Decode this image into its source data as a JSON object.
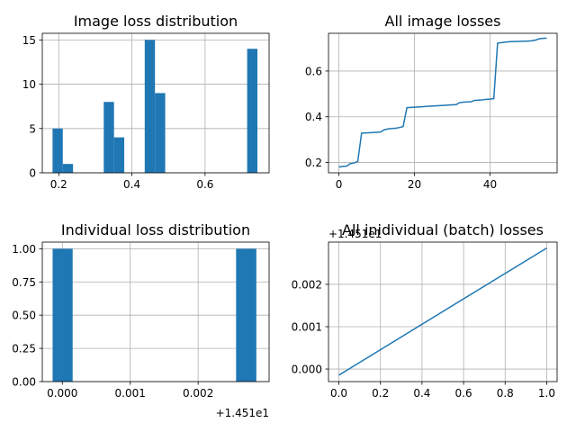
{
  "chart_data": [
    {
      "id": "hist_image",
      "type": "bar",
      "title": "Image loss distribution",
      "xlabel": "",
      "ylabel": "",
      "xlim": [
        0.155,
        0.775
      ],
      "ylim": [
        0,
        15.75
      ],
      "xticks": [
        0.2,
        0.4,
        0.6
      ],
      "xtick_labels": [
        "0.2",
        "0.4",
        "0.6"
      ],
      "yticks": [
        0,
        5,
        10,
        15
      ],
      "ytick_labels": [
        "0",
        "5",
        "10",
        "15"
      ],
      "grid": true,
      "bins": [
        {
          "x0": 0.183,
          "x1": 0.211,
          "value": 5
        },
        {
          "x0": 0.211,
          "x1": 0.239,
          "value": 1
        },
        {
          "x0": 0.323,
          "x1": 0.351,
          "value": 8
        },
        {
          "x0": 0.351,
          "x1": 0.379,
          "value": 4
        },
        {
          "x0": 0.435,
          "x1": 0.463,
          "value": 15
        },
        {
          "x0": 0.463,
          "x1": 0.491,
          "value": 9
        },
        {
          "x0": 0.715,
          "x1": 0.743,
          "value": 14
        }
      ],
      "color": "#1f77b4"
    },
    {
      "id": "line_image",
      "type": "line",
      "title": "All image losses",
      "xlabel": "",
      "ylabel": "",
      "xlim": [
        -2.75,
        57.75
      ],
      "ylim": [
        0.155,
        0.765
      ],
      "xticks": [
        0,
        20,
        40
      ],
      "xtick_labels": [
        "0",
        "20",
        "40"
      ],
      "yticks": [
        0.2,
        0.4,
        0.6
      ],
      "ytick_labels": [
        "0.2",
        "0.4",
        "0.6"
      ],
      "grid": true,
      "x": [
        0,
        1,
        2,
        3,
        4,
        5,
        6,
        7,
        8,
        9,
        10,
        11,
        12,
        13,
        14,
        15,
        16,
        17,
        18,
        19,
        20,
        21,
        22,
        23,
        24,
        25,
        26,
        27,
        28,
        29,
        30,
        31,
        32,
        33,
        34,
        35,
        36,
        37,
        38,
        39,
        40,
        41,
        42,
        43,
        44,
        45,
        46,
        47,
        48,
        49,
        50,
        51,
        52,
        53,
        54,
        55
      ],
      "y": [
        0.18,
        0.183,
        0.184,
        0.195,
        0.198,
        0.205,
        0.328,
        0.329,
        0.33,
        0.331,
        0.332,
        0.333,
        0.343,
        0.347,
        0.349,
        0.35,
        0.353,
        0.357,
        0.44,
        0.441,
        0.442,
        0.443,
        0.444,
        0.445,
        0.446,
        0.447,
        0.448,
        0.449,
        0.45,
        0.451,
        0.452,
        0.453,
        0.462,
        0.464,
        0.465,
        0.466,
        0.472,
        0.473,
        0.474,
        0.476,
        0.477,
        0.479,
        0.722,
        0.724,
        0.726,
        0.728,
        0.729,
        0.729,
        0.73,
        0.73,
        0.731,
        0.732,
        0.735,
        0.741,
        0.743,
        0.744
      ],
      "color": "#1f77b4"
    },
    {
      "id": "hist_individual",
      "type": "bar",
      "title": "Individual loss distribution",
      "xlabel": "",
      "ylabel": "",
      "offset_text": "+1.451e1",
      "xlim": [
        -0.000295,
        0.003045
      ],
      "ylim": [
        0,
        1.05
      ],
      "xticks": [
        0,
        0.001,
        0.002
      ],
      "xtick_labels": [
        "0.000",
        "0.001",
        "0.002"
      ],
      "yticks": [
        0,
        0.25,
        0.5,
        0.75,
        1.0
      ],
      "ytick_labels": [
        "0.00",
        "0.25",
        "0.50",
        "0.75",
        "1.00"
      ],
      "grid": true,
      "bins": [
        {
          "x0": -0.000143,
          "x1": 0.000152,
          "value": 1
        },
        {
          "x0": 0.002559,
          "x1": 0.002857,
          "value": 1
        }
      ],
      "color": "#1f77b4"
    },
    {
      "id": "line_individual",
      "type": "line",
      "title": "All inidividual (batch) losses",
      "xlabel": "",
      "ylabel": "",
      "offset_text": "+1.451e1",
      "xlim": [
        -0.05,
        1.05
      ],
      "ylim": [
        -0.000296,
        0.002997
      ],
      "xticks": [
        0,
        0.2,
        0.4,
        0.6,
        0.8,
        1.0
      ],
      "xtick_labels": [
        "0.0",
        "0.2",
        "0.4",
        "0.6",
        "0.8",
        "1.0"
      ],
      "yticks": [
        0,
        0.001,
        0.002
      ],
      "ytick_labels": [
        "0.000",
        "0.001",
        "0.002"
      ],
      "grid": true,
      "x": [
        0,
        1
      ],
      "y": [
        -0.000143,
        0.002857
      ],
      "color": "#1f77b4"
    }
  ]
}
